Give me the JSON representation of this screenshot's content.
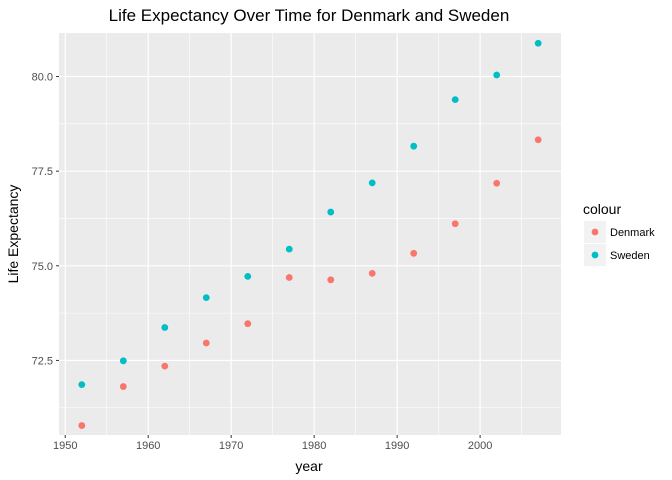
{
  "chart_data": {
    "type": "scatter",
    "title": "Life Expectancy Over Time for Denmark and Sweden",
    "xlabel": "year",
    "ylabel": "Life Expectancy",
    "xlim": [
      1949.25,
      2009.75
    ],
    "ylim": [
      70.53,
      81.15
    ],
    "x_ticks": [
      1950,
      1960,
      1970,
      1980,
      1990,
      2000
    ],
    "y_ticks": [
      72.5,
      75.0,
      77.5,
      80.0
    ],
    "y_tick_labels": [
      "72.5",
      "75.0",
      "77.5",
      "80.0"
    ],
    "grid": true,
    "legend": {
      "title": "colour",
      "position": "right"
    },
    "series": [
      {
        "name": "Denmark",
        "color": "#F8766D",
        "x": [
          1952,
          1957,
          1962,
          1967,
          1972,
          1977,
          1982,
          1987,
          1992,
          1997,
          2002,
          2007
        ],
        "y": [
          70.78,
          71.81,
          72.35,
          72.96,
          73.47,
          74.69,
          74.63,
          74.8,
          75.33,
          76.11,
          77.18,
          78.33
        ]
      },
      {
        "name": "Sweden",
        "color": "#00BFC4",
        "x": [
          1952,
          1957,
          1962,
          1967,
          1972,
          1977,
          1982,
          1987,
          1992,
          1997,
          2002,
          2007
        ],
        "y": [
          71.86,
          72.49,
          73.37,
          74.16,
          74.72,
          75.44,
          76.42,
          77.19,
          78.16,
          79.39,
          80.04,
          80.88
        ]
      }
    ]
  }
}
